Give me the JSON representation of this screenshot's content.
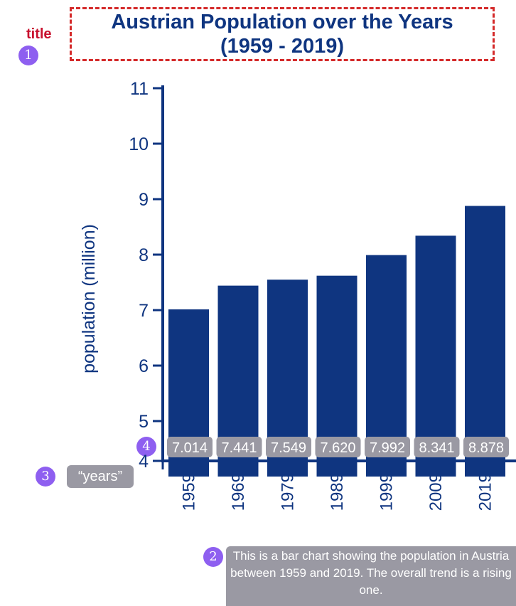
{
  "header": {
    "title_line1": "Austrian Population over the Years",
    "title_line2": "(1959 - 2019)",
    "title_tag": "title"
  },
  "annotations": {
    "badge1": "1",
    "badge2": "2",
    "badge3": "3",
    "badge4": "4",
    "years_label": "“years”",
    "alt_text": "This is a bar chart showing the population in Austria between 1959 and 2019. The overall trend is a rising one."
  },
  "colors": {
    "bar": "#0f3580",
    "axis": "#0f3580",
    "title_border": "#d42a2a",
    "badge": "#8e5ff0",
    "label_box": "#9a99a3"
  },
  "chart_data": {
    "type": "bar",
    "categories": [
      "1959",
      "1969",
      "1979",
      "1989",
      "1999",
      "2009",
      "2019"
    ],
    "values": [
      7.014,
      7.441,
      7.549,
      7.62,
      7.992,
      8.341,
      8.878
    ],
    "data_labels": [
      "7.014",
      "7.441",
      "7.549",
      "7.620",
      "7.992",
      "8.341",
      "8.878"
    ],
    "title": "Austrian Population over the Years (1959 - 2019)",
    "xlabel": "",
    "ylabel": "population (million)",
    "ylim": [
      4,
      11
    ],
    "yticks": [
      "4",
      "5",
      "6",
      "7",
      "8",
      "9",
      "10",
      "11"
    ],
    "grid": false
  }
}
